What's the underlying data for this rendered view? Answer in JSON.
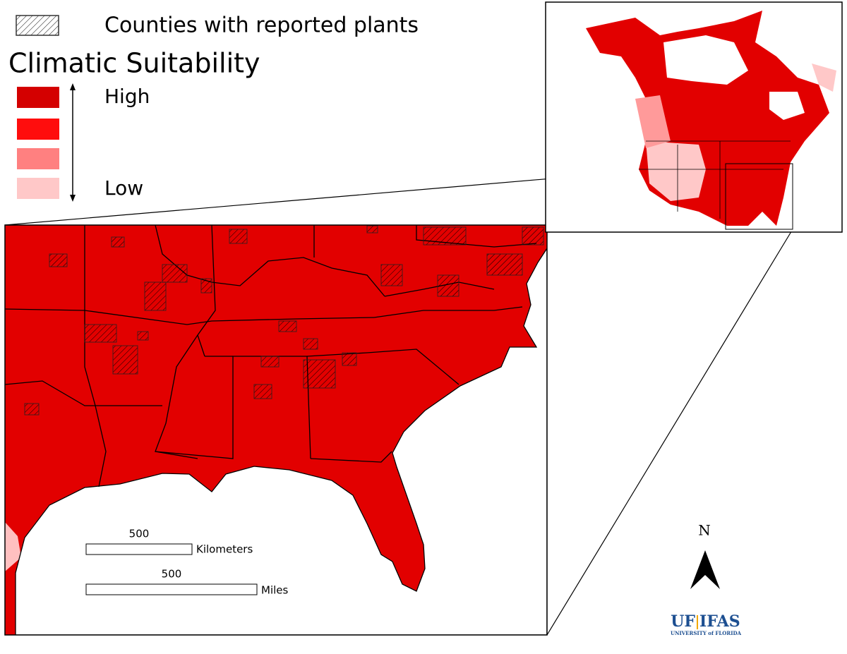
{
  "legend": {
    "hatch_label": "Counties with reported plants",
    "title": "Climatic Suitability",
    "high": "High",
    "low": "Low"
  },
  "scale_bars": [
    {
      "distance": 500,
      "unit": "Kilometers"
    },
    {
      "distance": 500,
      "unit": "Miles"
    }
  ],
  "north_arrow": "N",
  "logo": {
    "uf": "UF",
    "ifas": "IFAS",
    "university": "UNIVERSITY of FLORIDA"
  }
}
